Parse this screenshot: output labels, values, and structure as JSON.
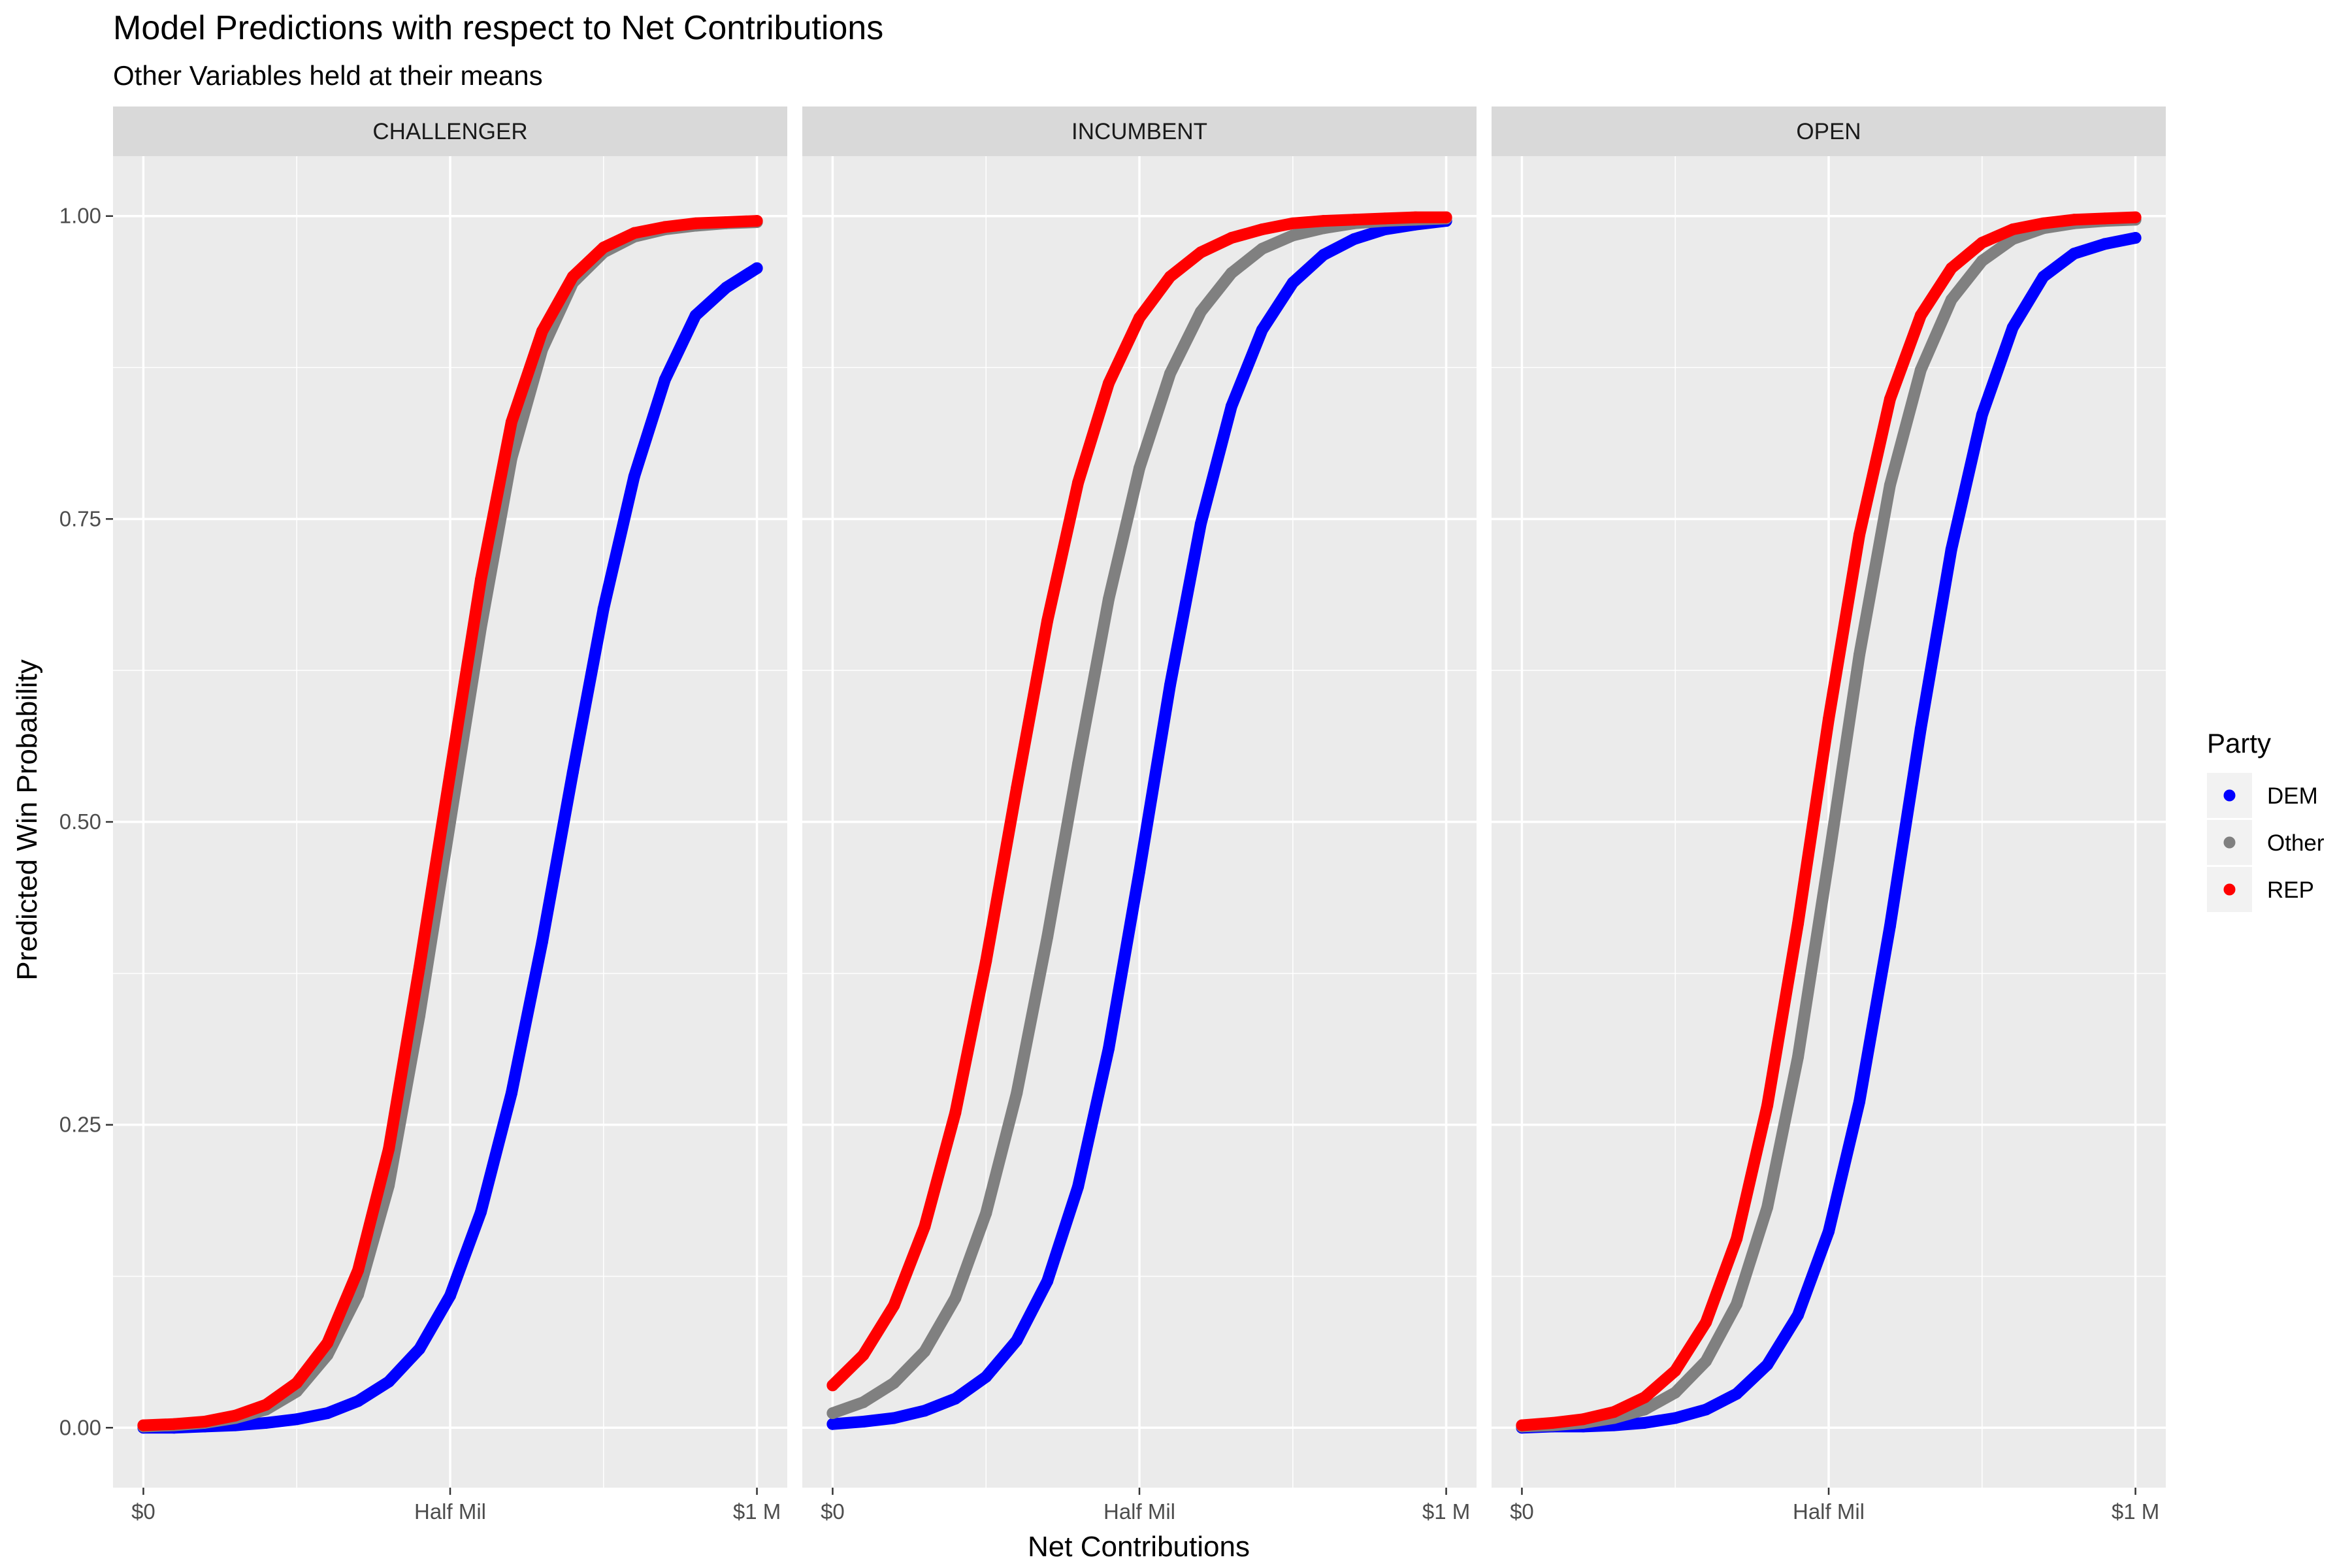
{
  "chart_data": {
    "type": "scatter",
    "title": "Model Predictions with respect to Net Contributions",
    "subtitle": "Other Variables held at their means",
    "xlabel": "Net Contributions",
    "ylabel": "Predicted Win Probability",
    "xlim": [
      0,
      1000000
    ],
    "ylim": [
      0,
      1
    ],
    "x_ticks": [
      {
        "value": 0,
        "label": "$0"
      },
      {
        "value": 500000,
        "label": "Half Mil"
      },
      {
        "value": 1000000,
        "label": "$1 M"
      }
    ],
    "y_ticks": [
      {
        "value": 0,
        "label": "0.00"
      },
      {
        "value": 0.25,
        "label": "0.25"
      },
      {
        "value": 0.5,
        "label": "0.50"
      },
      {
        "value": 0.75,
        "label": "0.75"
      },
      {
        "value": 1,
        "label": "1.00"
      }
    ],
    "grid": true,
    "legend": {
      "title": "Party",
      "position": "right",
      "entries": [
        {
          "label": "DEM",
          "color": "#0000FF"
        },
        {
          "label": "Other",
          "color": "#808080"
        },
        {
          "label": "REP",
          "color": "#FF0000"
        }
      ]
    },
    "x": [
      0,
      50000,
      100000,
      150000,
      200000,
      250000,
      300000,
      350000,
      400000,
      450000,
      500000,
      550000,
      600000,
      650000,
      700000,
      750000,
      800000,
      850000,
      900000,
      950000,
      1000000
    ],
    "panels": [
      {
        "label": "CHALLENGER",
        "series": [
          {
            "name": "DEM",
            "color": "#0000FF",
            "values": [
              0.0,
              0.0,
              0.001,
              0.002,
              0.004,
              0.007,
              0.012,
              0.022,
              0.038,
              0.065,
              0.109,
              0.178,
              0.276,
              0.401,
              0.541,
              0.676,
              0.785,
              0.865,
              0.918,
              0.941,
              0.957
            ]
          },
          {
            "name": "Other",
            "color": "#808080",
            "values": [
              0.001,
              0.002,
              0.004,
              0.008,
              0.015,
              0.03,
              0.06,
              0.11,
              0.2,
              0.34,
              0.5,
              0.66,
              0.8,
              0.89,
              0.945,
              0.97,
              0.983,
              0.989,
              0.992,
              0.994,
              0.995
            ]
          },
          {
            "name": "REP",
            "color": "#FF0000",
            "values": [
              0.002,
              0.003,
              0.005,
              0.01,
              0.019,
              0.037,
              0.07,
              0.13,
              0.23,
              0.38,
              0.54,
              0.7,
              0.83,
              0.905,
              0.95,
              0.974,
              0.986,
              0.991,
              0.994,
              0.995,
              0.996
            ]
          }
        ]
      },
      {
        "label": "INCUMBENT",
        "series": [
          {
            "name": "DEM",
            "color": "#0000FF",
            "values": [
              0.003,
              0.005,
              0.008,
              0.014,
              0.024,
              0.042,
              0.072,
              0.121,
              0.199,
              0.313,
              0.459,
              0.613,
              0.746,
              0.843,
              0.906,
              0.945,
              0.968,
              0.981,
              0.989,
              0.993,
              0.996
            ]
          },
          {
            "name": "Other",
            "color": "#808080",
            "values": [
              0.012,
              0.021,
              0.037,
              0.063,
              0.107,
              0.177,
              0.276,
              0.405,
              0.548,
              0.684,
              0.792,
              0.87,
              0.921,
              0.953,
              0.973,
              0.984,
              0.99,
              0.994,
              0.996,
              0.997,
              0.998
            ]
          },
          {
            "name": "REP",
            "color": "#FF0000",
            "values": [
              0.035,
              0.06,
              0.101,
              0.166,
              0.26,
              0.385,
              0.528,
              0.666,
              0.78,
              0.862,
              0.916,
              0.95,
              0.97,
              0.982,
              0.989,
              0.994,
              0.996,
              0.997,
              0.998,
              0.999,
              0.999
            ]
          }
        ]
      },
      {
        "label": "OPEN",
        "series": [
          {
            "name": "DEM",
            "color": "#0000FF",
            "values": [
              0.0,
              0.001,
              0.001,
              0.002,
              0.004,
              0.008,
              0.015,
              0.028,
              0.052,
              0.093,
              0.162,
              0.269,
              0.414,
              0.577,
              0.725,
              0.836,
              0.908,
              0.95,
              0.969,
              0.977,
              0.982
            ]
          },
          {
            "name": "Other",
            "color": "#808080",
            "values": [
              0.001,
              0.002,
              0.004,
              0.008,
              0.015,
              0.029,
              0.055,
              0.102,
              0.182,
              0.306,
              0.469,
              0.638,
              0.778,
              0.873,
              0.931,
              0.963,
              0.981,
              0.99,
              0.994,
              0.996,
              0.997
            ]
          },
          {
            "name": "REP",
            "color": "#FF0000",
            "values": [
              0.002,
              0.004,
              0.007,
              0.013,
              0.025,
              0.047,
              0.087,
              0.156,
              0.266,
              0.416,
              0.585,
              0.737,
              0.849,
              0.918,
              0.957,
              0.978,
              0.989,
              0.994,
              0.997,
              0.998,
              0.999
            ]
          }
        ]
      }
    ]
  }
}
